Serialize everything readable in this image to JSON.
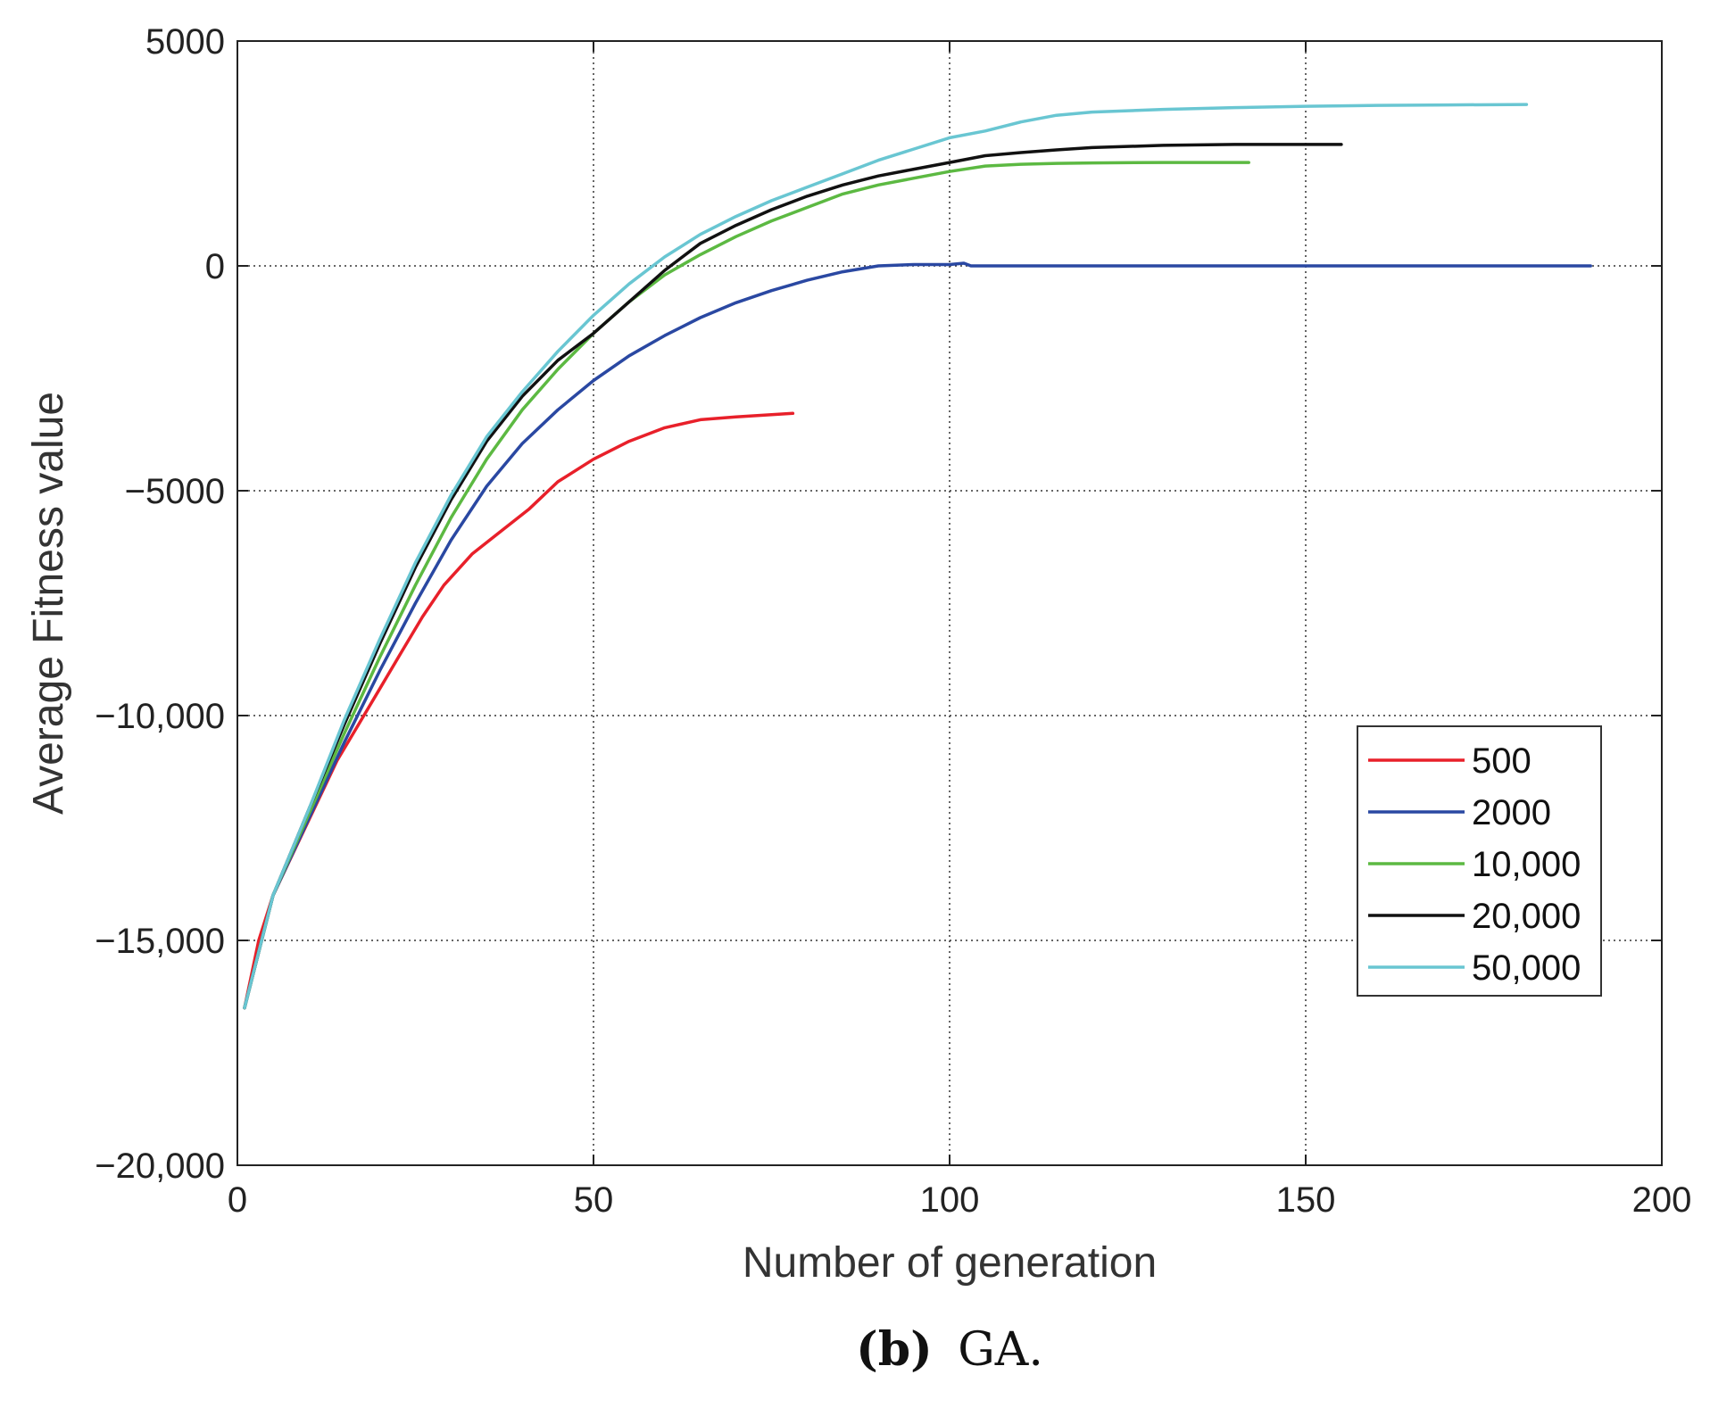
{
  "chart_data": {
    "type": "line",
    "title": "",
    "xlabel": "Number of generation",
    "ylabel": "Average Fitness value",
    "xlim": [
      0,
      200
    ],
    "ylim": [
      -20000,
      5000
    ],
    "grid": true,
    "legend_position": "right",
    "x_ticks": [
      {
        "value": 0,
        "label": "0"
      },
      {
        "value": 50,
        "label": "50"
      },
      {
        "value": 100,
        "label": "100"
      },
      {
        "value": 150,
        "label": "150"
      },
      {
        "value": 200,
        "label": "200"
      }
    ],
    "y_ticks": [
      {
        "value": 5000,
        "label": "5000"
      },
      {
        "value": 0,
        "label": "0"
      },
      {
        "value": -5000,
        "label": "−5000"
      },
      {
        "value": -10000,
        "label": "−10,000"
      },
      {
        "value": -15000,
        "label": "−15,000"
      },
      {
        "value": -20000,
        "label": "−20,000"
      }
    ],
    "series": [
      {
        "name": "500",
        "color": "#e8202a",
        "x": [
          1,
          3,
          5,
          8,
          11,
          14,
          17,
          20,
          23,
          26,
          29,
          33,
          37,
          41,
          45,
          50,
          55,
          60,
          65,
          70,
          75,
          78
        ],
        "y": [
          -16500,
          -15000,
          -14000,
          -13000,
          -12000,
          -11000,
          -10200,
          -9400,
          -8600,
          -7800,
          -7100,
          -6400,
          -5900,
          -5400,
          -4800,
          -4300,
          -3900,
          -3600,
          -3420,
          -3360,
          -3310,
          -3280
        ]
      },
      {
        "name": "2000",
        "color": "#2a48a2",
        "x": [
          1,
          5,
          10,
          15,
          20,
          25,
          30,
          35,
          40,
          45,
          50,
          55,
          60,
          65,
          70,
          75,
          80,
          85,
          90,
          95,
          100,
          102,
          103,
          110,
          130,
          150,
          170,
          190
        ],
        "y": [
          -16500,
          -14000,
          -12300,
          -10600,
          -9000,
          -7500,
          -6100,
          -4900,
          -3950,
          -3200,
          -2550,
          -2000,
          -1550,
          -1150,
          -820,
          -550,
          -320,
          -130,
          0,
          30,
          30,
          60,
          0,
          0,
          0,
          0,
          0,
          0
        ]
      },
      {
        "name": "10,000",
        "color": "#5cb942",
        "x": [
          1,
          5,
          10,
          15,
          20,
          25,
          30,
          35,
          40,
          45,
          50,
          55,
          60,
          65,
          70,
          75,
          80,
          85,
          90,
          95,
          100,
          105,
          110,
          115,
          120,
          130,
          142
        ],
        "y": [
          -16500,
          -14000,
          -12200,
          -10400,
          -8700,
          -7100,
          -5600,
          -4300,
          -3200,
          -2300,
          -1500,
          -800,
          -200,
          250,
          650,
          1000,
          1300,
          1600,
          1800,
          1950,
          2100,
          2220,
          2260,
          2280,
          2290,
          2300,
          2300
        ]
      },
      {
        "name": "20,000",
        "color": "#111111",
        "x": [
          1,
          5,
          10,
          15,
          20,
          25,
          30,
          35,
          40,
          45,
          50,
          55,
          60,
          65,
          70,
          75,
          80,
          85,
          90,
          95,
          100,
          105,
          110,
          115,
          120,
          130,
          140,
          155
        ],
        "y": [
          -16500,
          -14000,
          -12100,
          -10200,
          -8400,
          -6700,
          -5200,
          -3900,
          -2900,
          -2100,
          -1500,
          -800,
          -100,
          500,
          900,
          1250,
          1550,
          1800,
          2000,
          2150,
          2300,
          2450,
          2520,
          2580,
          2630,
          2680,
          2700,
          2700
        ]
      },
      {
        "name": "50,000",
        "color": "#69c6d2",
        "x": [
          1,
          5,
          10,
          15,
          20,
          25,
          30,
          35,
          40,
          45,
          50,
          55,
          60,
          65,
          70,
          75,
          80,
          85,
          90,
          95,
          100,
          105,
          110,
          115,
          120,
          130,
          140,
          150,
          160,
          170,
          181
        ],
        "y": [
          -16500,
          -14000,
          -12100,
          -10100,
          -8300,
          -6600,
          -5100,
          -3800,
          -2800,
          -1900,
          -1100,
          -400,
          200,
          700,
          1100,
          1450,
          1750,
          2050,
          2350,
          2600,
          2850,
          3000,
          3200,
          3350,
          3420,
          3480,
          3520,
          3550,
          3570,
          3580,
          3590
        ]
      }
    ],
    "caption": {
      "label": "(b)",
      "text": "GA."
    }
  }
}
